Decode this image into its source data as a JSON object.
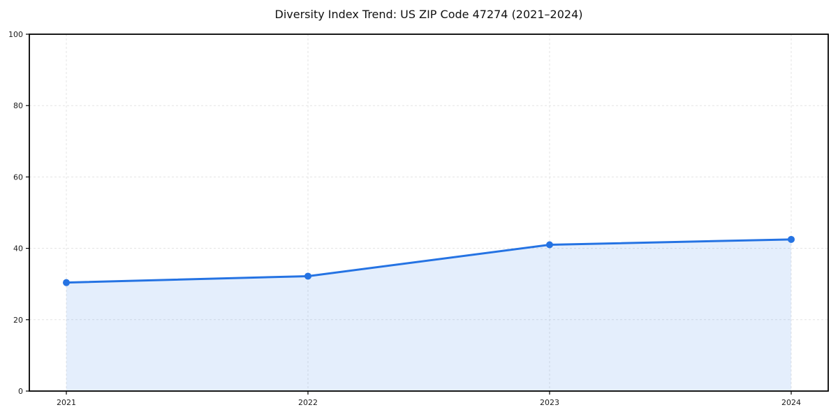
{
  "chart_data": {
    "type": "line",
    "title": "Diversity Index Trend: US ZIP Code 47274 (2021–2024)",
    "x": [
      "2021",
      "2022",
      "2023",
      "2024"
    ],
    "values": [
      30.4,
      32.2,
      41.0,
      42.5
    ],
    "xlabel": "",
    "ylabel": "",
    "ylim": [
      0,
      100
    ],
    "yticks": [
      0,
      20,
      40,
      60,
      80,
      100
    ],
    "grid": "dashed",
    "legend": "none",
    "area_fill": true,
    "marker": "circle",
    "colors": {
      "line": "#2573e3",
      "marker": "#2573e3",
      "fill": "#2573e3",
      "fill_opacity": 0.12,
      "grid": "#e3e3e3",
      "spine": "#000000",
      "tick_label": "#1a1a1a",
      "title": "#111111",
      "background": "#ffffff"
    }
  }
}
